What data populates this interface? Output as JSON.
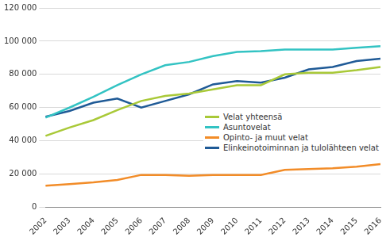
{
  "chart_data": {
    "type": "line",
    "categories": [
      "2002",
      "2003",
      "2004",
      "2005",
      "2006",
      "2007",
      "2008",
      "2009",
      "2010",
      "2011",
      "2012",
      "2013",
      "2014",
      "2015",
      "2016"
    ],
    "series": [
      {
        "name": "Velat yhteensä",
        "color": "#a9c938",
        "values": [
          43000,
          48000,
          52500,
          58500,
          64000,
          67000,
          68500,
          71000,
          73500,
          73500,
          80000,
          81000,
          81000,
          82500,
          84500
        ]
      },
      {
        "name": "Asuntovelat",
        "color": "#33c3c3",
        "values": [
          54000,
          60000,
          66500,
          73500,
          80000,
          85500,
          87500,
          91000,
          93500,
          94000,
          95000,
          95000,
          95000,
          96000,
          97000
        ]
      },
      {
        "name": "Opinto- ja muut velat",
        "color": "#f28c28",
        "values": [
          13000,
          14000,
          15000,
          16500,
          19500,
          19500,
          19000,
          19500,
          19500,
          19500,
          22500,
          23000,
          23500,
          24500,
          26000
        ]
      },
      {
        "name": "Elinkeinotoiminnan ja tulolähteen velat",
        "color": "#1f5a96",
        "values": [
          54500,
          58000,
          63000,
          65500,
          60000,
          64000,
          68000,
          74000,
          76000,
          75000,
          78000,
          83000,
          84500,
          88000,
          89500
        ]
      }
    ],
    "ylim": [
      0,
      120000
    ],
    "yticks": [
      0,
      {
        "value": 20000,
        "label": "20 000"
      },
      {
        "value": 40000,
        "label": "40 000"
      },
      {
        "value": 60000,
        "label": "60 000"
      },
      {
        "value": 80000,
        "label": "80 000"
      },
      {
        "value": 100000,
        "label": "100 000"
      },
      {
        "value": 120000,
        "label": "120 000"
      }
    ],
    "grid": true,
    "legend": "right"
  }
}
